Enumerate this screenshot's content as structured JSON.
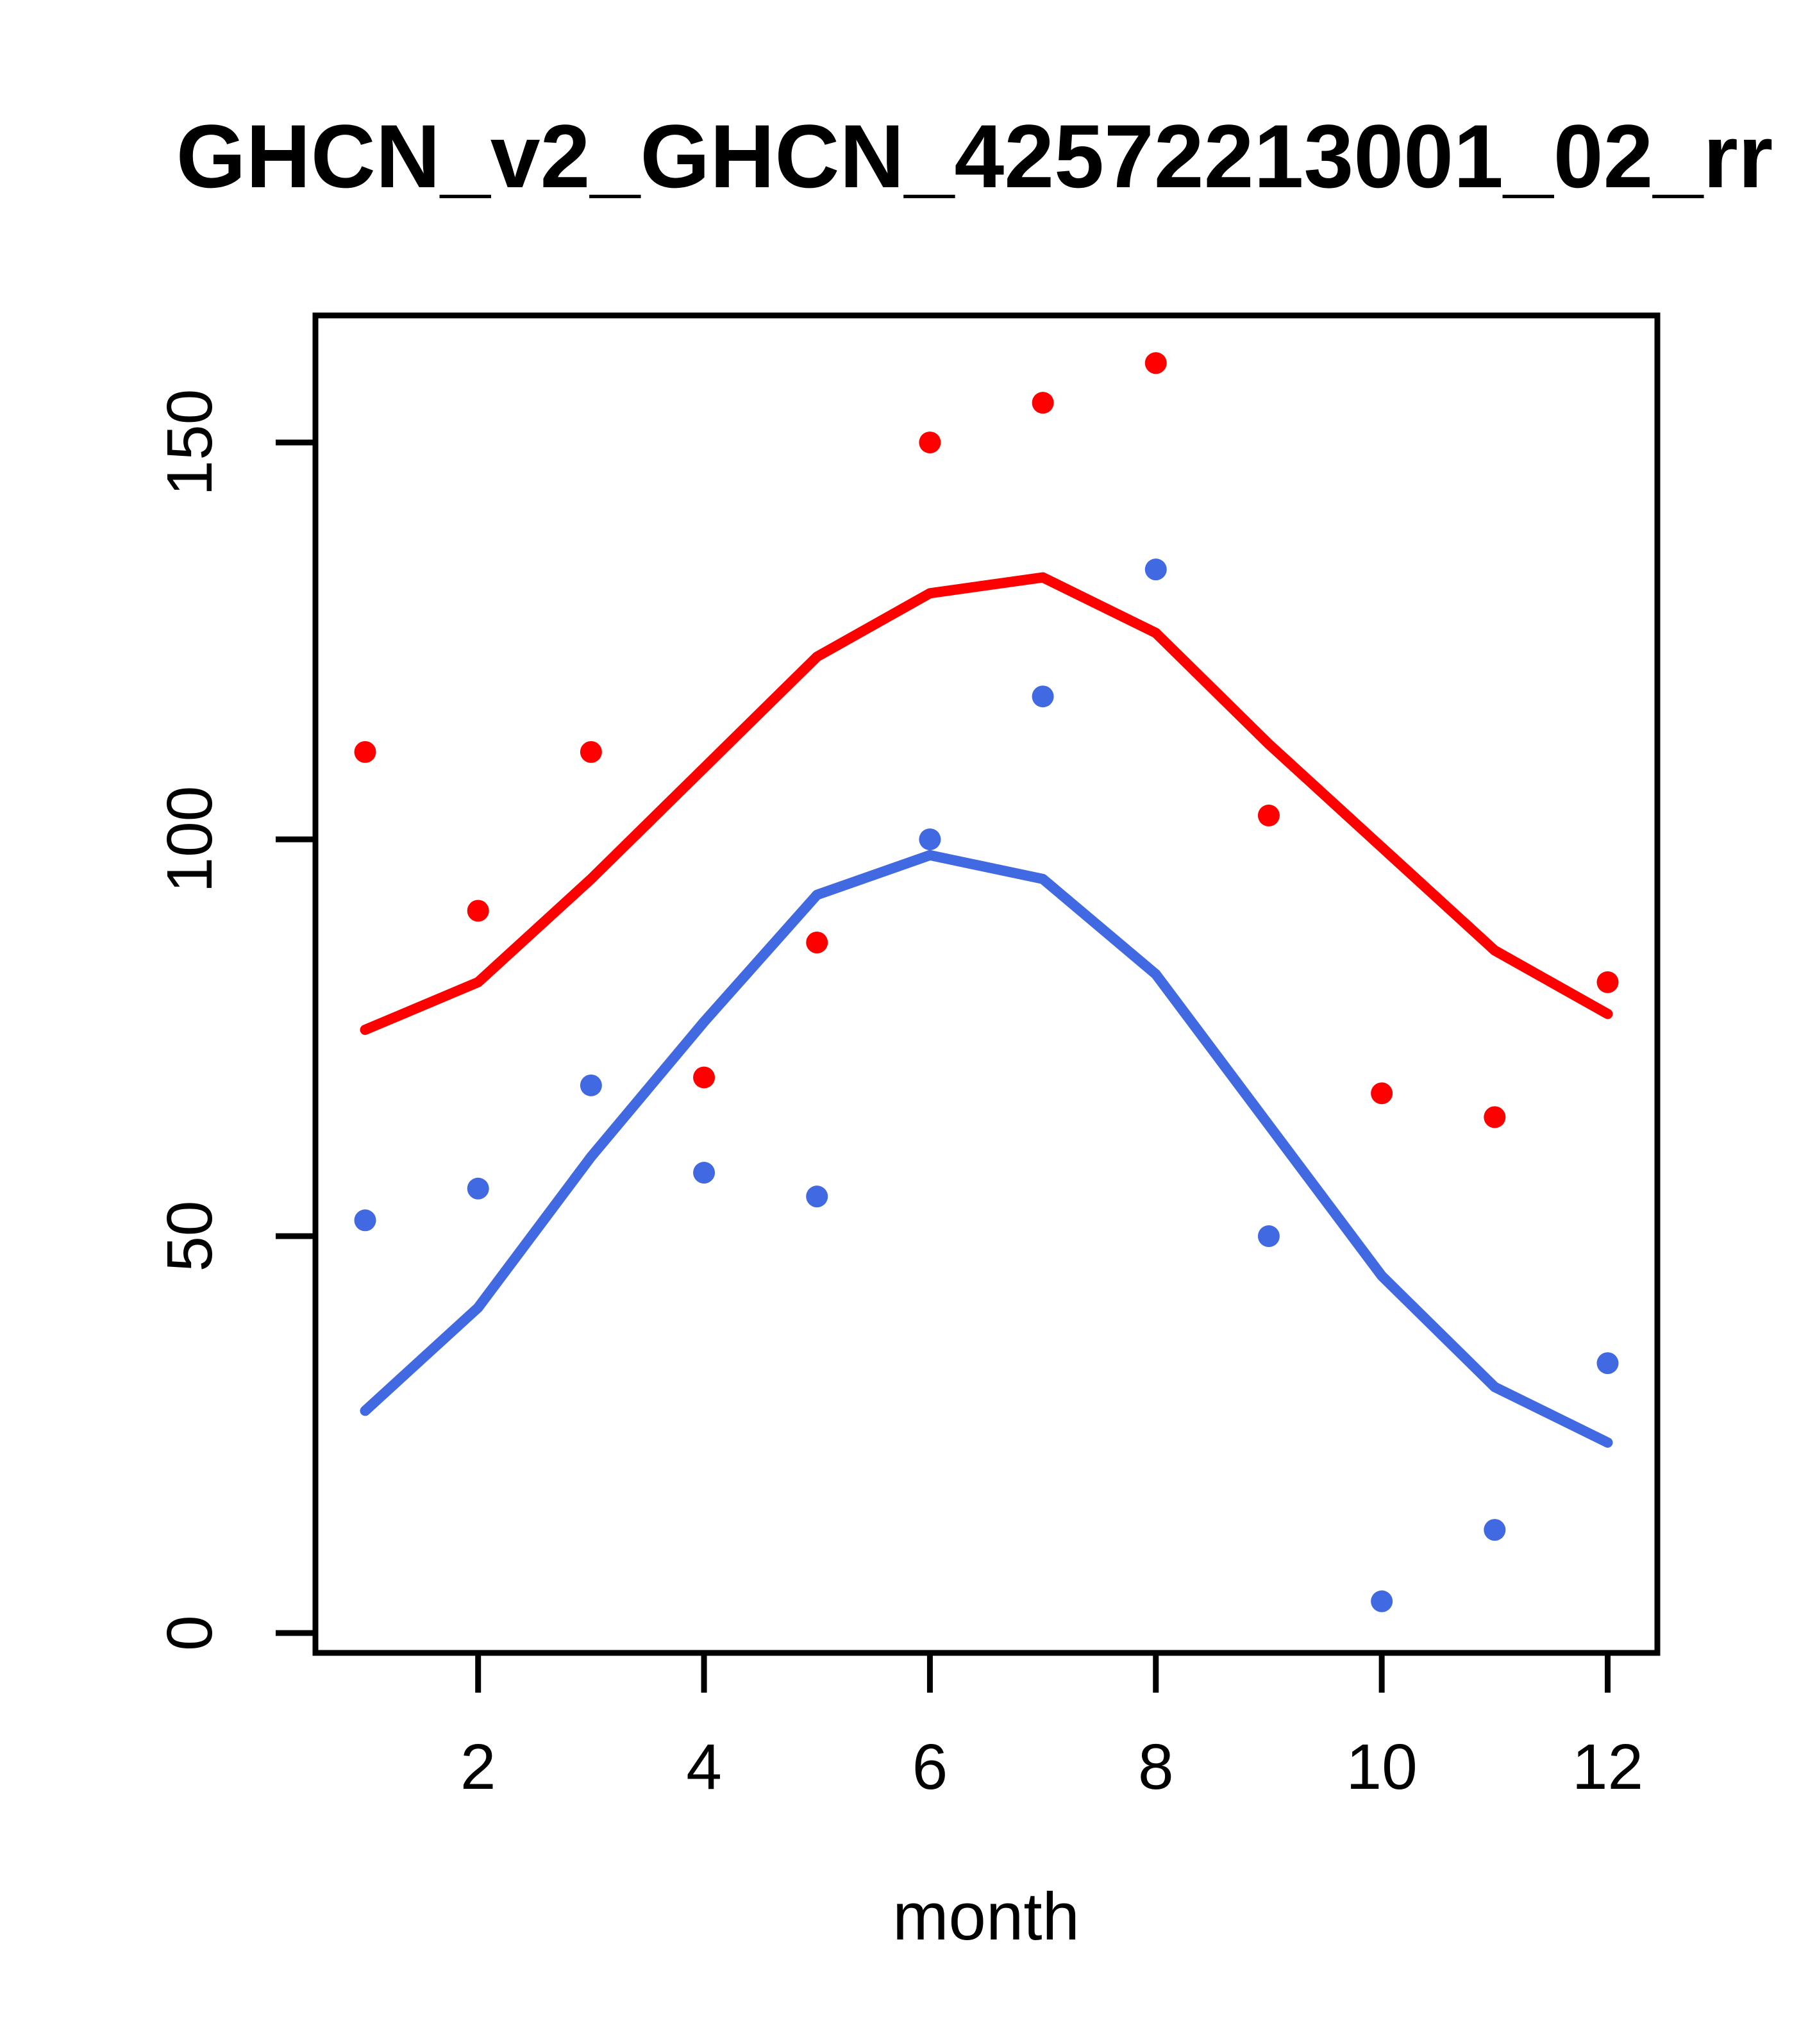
{
  "title": "GHCN_v2_GHCN_42572213001_02_rr",
  "colors": {
    "red_series": "#FF0000",
    "blue_series": "#4169E1",
    "axis": "#000000",
    "background": "#FFFFFF"
  },
  "chart_data": {
    "type": "line",
    "title": "GHCN_v2_GHCN_42572213001_02_rr",
    "xlabel": "month",
    "ylabel": "",
    "x": [
      1,
      2,
      3,
      4,
      5,
      6,
      7,
      8,
      9,
      10,
      11,
      12
    ],
    "xticks": [
      2,
      4,
      6,
      8,
      10,
      12
    ],
    "yticks": [
      0,
      50,
      100,
      150
    ],
    "xlim": [
      0.56,
      12.44
    ],
    "ylim": [
      -2.5,
      166
    ],
    "grid": false,
    "legend": "none",
    "series": [
      {
        "name": "red-line",
        "type": "line",
        "color": "#FF0000",
        "values": [
          76,
          82,
          95,
          109,
          123,
          131,
          133,
          126,
          112,
          99,
          86,
          78
        ]
      },
      {
        "name": "blue-line",
        "type": "line",
        "color": "#4169E1",
        "values": [
          28,
          41,
          60,
          77,
          93,
          98,
          95,
          83,
          64,
          45,
          31,
          24
        ]
      },
      {
        "name": "red-points",
        "type": "scatter",
        "color": "#FF0000",
        "values": [
          111,
          91,
          111,
          70,
          87,
          150,
          155,
          160,
          103,
          68,
          65,
          82
        ]
      },
      {
        "name": "blue-points",
        "type": "scatter",
        "color": "#4169E1",
        "values": [
          52,
          56,
          69,
          58,
          55,
          100,
          118,
          134,
          50,
          4,
          13,
          34
        ]
      }
    ]
  }
}
